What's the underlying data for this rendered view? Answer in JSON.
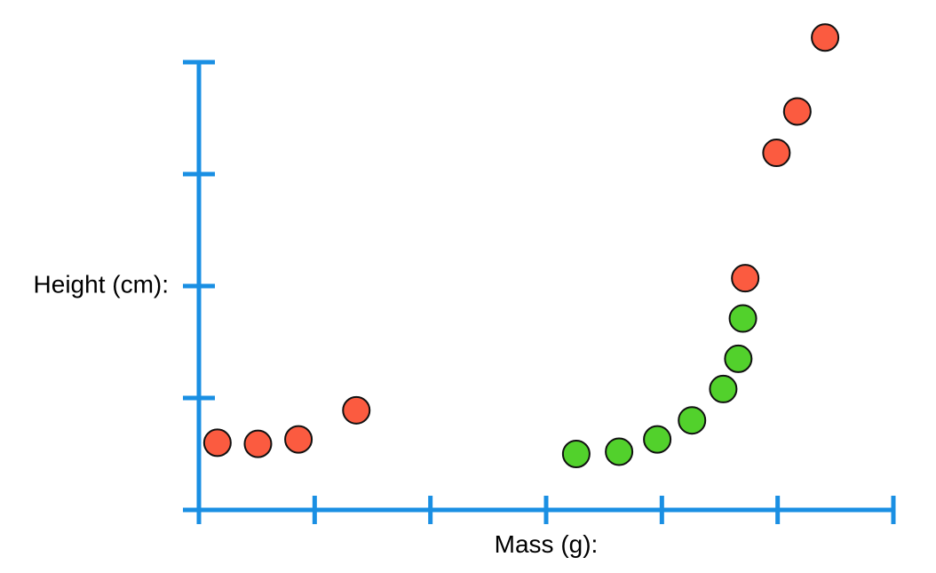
{
  "chart_data": {
    "type": "scatter",
    "title": "",
    "xlabel": "Mass (g):",
    "ylabel": "Height (cm):",
    "xlim": [
      0,
      6
    ],
    "ylim": [
      0,
      4
    ],
    "x_ticks": [
      0,
      1,
      2,
      3,
      4,
      5,
      6
    ],
    "y_ticks": [
      0,
      1,
      2,
      3,
      4
    ],
    "grid": false,
    "legend": "none",
    "colors": {
      "axis": "#1a8fe3",
      "red": "#fb5b40",
      "green": "#52d12c",
      "outline": "#111111"
    },
    "series": [
      {
        "color": "red",
        "points": [
          {
            "x": 0.16,
            "y": 0.6
          },
          {
            "x": 0.51,
            "y": 0.59
          },
          {
            "x": 0.86,
            "y": 0.63
          },
          {
            "x": 1.36,
            "y": 0.89
          },
          {
            "x": 4.72,
            "y": 2.07
          },
          {
            "x": 4.99,
            "y": 3.19
          },
          {
            "x": 5.17,
            "y": 3.56
          },
          {
            "x": 5.41,
            "y": 4.22
          }
        ]
      },
      {
        "color": "green",
        "points": [
          {
            "x": 3.26,
            "y": 0.5
          },
          {
            "x": 3.63,
            "y": 0.52
          },
          {
            "x": 3.96,
            "y": 0.63
          },
          {
            "x": 4.26,
            "y": 0.8
          },
          {
            "x": 4.53,
            "y": 1.08
          },
          {
            "x": 4.66,
            "y": 1.35
          },
          {
            "x": 4.7,
            "y": 1.71
          }
        ]
      }
    ]
  }
}
